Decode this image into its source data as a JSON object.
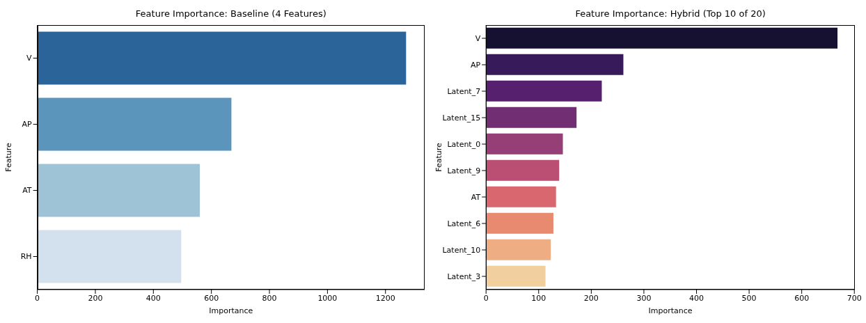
{
  "chart_data": [
    {
      "type": "bar",
      "orientation": "horizontal",
      "title": "Feature Importance: Baseline (4 Features)",
      "xlabel": "Importance",
      "ylabel": "Feature",
      "categories": [
        "V",
        "AP",
        "AT",
        "RH"
      ],
      "values": [
        1271,
        669,
        560,
        496
      ],
      "colors": [
        "#2b6499",
        "#5b95bb",
        "#9ec2d6",
        "#d3e1ee"
      ],
      "xlim": [
        0,
        1335
      ],
      "xticks": [
        0,
        200,
        400,
        600,
        800,
        1000,
        1200
      ],
      "grid": false,
      "legend": false
    },
    {
      "type": "bar",
      "orientation": "horizontal",
      "title": "Feature Importance: Hybrid (Top 10 of 20)",
      "xlabel": "Importance",
      "ylabel": "Feature",
      "categories": [
        "V",
        "AP",
        "Latent_7",
        "Latent_15",
        "Latent_0",
        "Latent_9",
        "AT",
        "Latent_6",
        "Latent_10",
        "Latent_3"
      ],
      "values": [
        668,
        261,
        220,
        172,
        146,
        139,
        133,
        128,
        123,
        113
      ],
      "colors": [
        "#161130",
        "#361a5a",
        "#57206f",
        "#722e72",
        "#963e76",
        "#ba4f73",
        "#d8676f",
        "#e88a6f",
        "#eead83",
        "#f1cf9e"
      ],
      "xlim": [
        0,
        701
      ],
      "xticks": [
        0,
        100,
        200,
        300,
        400,
        500,
        600,
        700
      ],
      "grid": false,
      "legend": false
    }
  ]
}
